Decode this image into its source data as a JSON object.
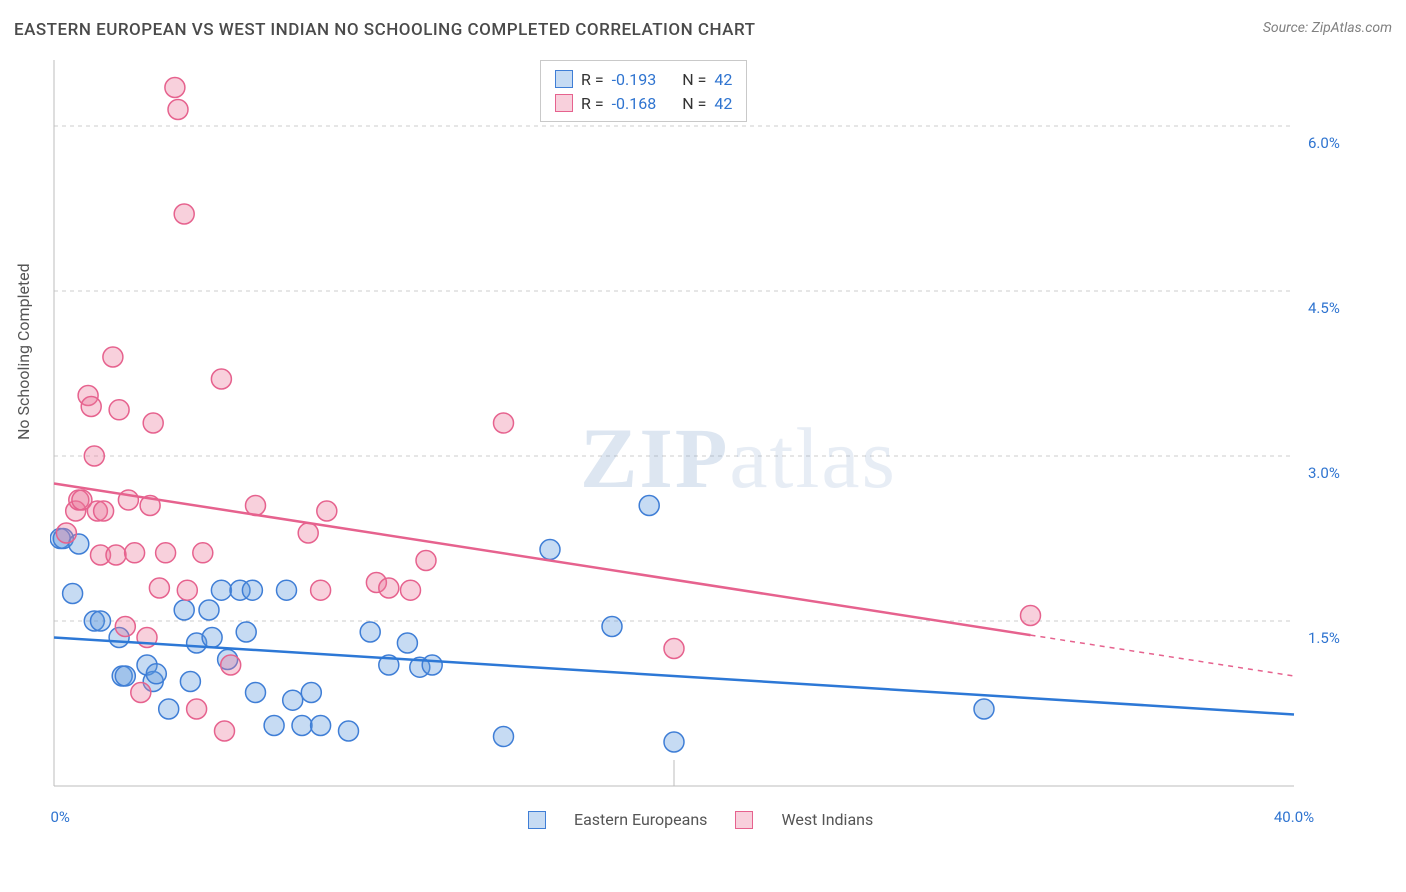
{
  "title": "EASTERN EUROPEAN VS WEST INDIAN NO SCHOOLING COMPLETED CORRELATION CHART",
  "source_label": "Source: ZipAtlas.com",
  "ylabel": "No Schooling Completed",
  "watermark": {
    "left": "ZIP",
    "right": "atlas"
  },
  "chart": {
    "type": "scatter",
    "background_color": "#ffffff",
    "grid_color": "#cccccc",
    "axis_color": "#bcbcbc",
    "label_color": "#2f74d0",
    "title_color": "#4a4a4a",
    "title_fontsize": 17,
    "label_fontsize": 15,
    "xlim": [
      0,
      40
    ],
    "ylim": [
      0,
      6.6
    ],
    "ygrid": [
      1.5,
      3.0,
      4.5,
      6.0
    ],
    "ytick_labels": [
      "1.5%",
      "3.0%",
      "4.5%",
      "6.0%"
    ],
    "xtick_positions": [
      0,
      40
    ],
    "xtick_labels": [
      "0.0%",
      "40.0%"
    ],
    "tick_long_x": 20,
    "marker_radius": 10,
    "marker_stroke_width": 1.5,
    "line_width": 2.5,
    "series": [
      {
        "name": "Eastern Europeans",
        "fill": "rgba(93,152,222,0.35)",
        "stroke": "#3f7ed6",
        "line_color": "#2d78d6",
        "R": "-0.193",
        "N": "42",
        "trend": {
          "x1": 0,
          "y1": 1.35,
          "x2": 40,
          "y2": 0.65
        },
        "points": [
          [
            0.2,
            2.25
          ],
          [
            0.3,
            2.25
          ],
          [
            0.6,
            1.75
          ],
          [
            0.8,
            2.2
          ],
          [
            1.3,
            1.5
          ],
          [
            1.5,
            1.5
          ],
          [
            2.1,
            1.35
          ],
          [
            2.2,
            1.0
          ],
          [
            2.3,
            1.0
          ],
          [
            3.0,
            1.1
          ],
          [
            3.2,
            0.95
          ],
          [
            3.3,
            1.02
          ],
          [
            3.7,
            0.7
          ],
          [
            4.2,
            1.6
          ],
          [
            4.4,
            0.95
          ],
          [
            4.6,
            1.3
          ],
          [
            5.0,
            1.6
          ],
          [
            5.1,
            1.35
          ],
          [
            5.4,
            1.78
          ],
          [
            5.6,
            1.15
          ],
          [
            6.0,
            1.78
          ],
          [
            6.2,
            1.4
          ],
          [
            6.4,
            1.78
          ],
          [
            6.5,
            0.85
          ],
          [
            7.1,
            0.55
          ],
          [
            7.5,
            1.78
          ],
          [
            7.7,
            0.78
          ],
          [
            8.0,
            0.55
          ],
          [
            8.3,
            0.85
          ],
          [
            8.6,
            0.55
          ],
          [
            9.5,
            0.5
          ],
          [
            10.2,
            1.4
          ],
          [
            10.8,
            1.1
          ],
          [
            11.4,
            1.3
          ],
          [
            11.8,
            1.08
          ],
          [
            12.2,
            1.1
          ],
          [
            14.5,
            0.45
          ],
          [
            16.0,
            2.15
          ],
          [
            18.0,
            1.45
          ],
          [
            19.2,
            2.55
          ],
          [
            20.0,
            0.4
          ],
          [
            30.0,
            0.7
          ]
        ]
      },
      {
        "name": "West Indians",
        "fill": "rgba(235,120,155,0.35)",
        "stroke": "#e6628e",
        "line_color": "#e6628e",
        "R": "-0.168",
        "N": "42",
        "trend": {
          "x1": 0,
          "y1": 2.75,
          "x2": 40,
          "y2": 1.0
        },
        "trend_solid_until_x": 31.5,
        "points": [
          [
            0.4,
            2.3
          ],
          [
            0.7,
            2.5
          ],
          [
            0.8,
            2.6
          ],
          [
            0.9,
            2.6
          ],
          [
            1.1,
            3.55
          ],
          [
            1.2,
            3.45
          ],
          [
            1.3,
            3.0
          ],
          [
            1.4,
            2.5
          ],
          [
            1.5,
            2.1
          ],
          [
            1.6,
            2.5
          ],
          [
            1.9,
            3.9
          ],
          [
            2.0,
            2.1
          ],
          [
            2.1,
            3.42
          ],
          [
            2.3,
            1.45
          ],
          [
            2.4,
            2.6
          ],
          [
            2.6,
            2.12
          ],
          [
            3.1,
            2.55
          ],
          [
            3.2,
            3.3
          ],
          [
            3.4,
            1.8
          ],
          [
            3.6,
            2.12
          ],
          [
            3.9,
            6.35
          ],
          [
            4.0,
            6.15
          ],
          [
            4.2,
            5.2
          ],
          [
            4.3,
            1.78
          ],
          [
            4.6,
            0.7
          ],
          [
            4.8,
            2.12
          ],
          [
            5.4,
            3.7
          ],
          [
            5.5,
            0.5
          ],
          [
            5.7,
            1.1
          ],
          [
            6.5,
            2.55
          ],
          [
            8.2,
            2.3
          ],
          [
            8.6,
            1.78
          ],
          [
            8.8,
            2.5
          ],
          [
            10.4,
            1.85
          ],
          [
            10.8,
            1.8
          ],
          [
            11.5,
            1.78
          ],
          [
            12.0,
            2.05
          ],
          [
            14.5,
            3.3
          ],
          [
            20.0,
            1.25
          ],
          [
            31.5,
            1.55
          ],
          [
            3.0,
            1.35
          ],
          [
            2.8,
            0.85
          ]
        ]
      }
    ]
  },
  "legend_top": {
    "r_label": "R =",
    "n_label": "N ="
  },
  "legend_bottom": {
    "items": [
      "Eastern Europeans",
      "West Indians"
    ]
  }
}
